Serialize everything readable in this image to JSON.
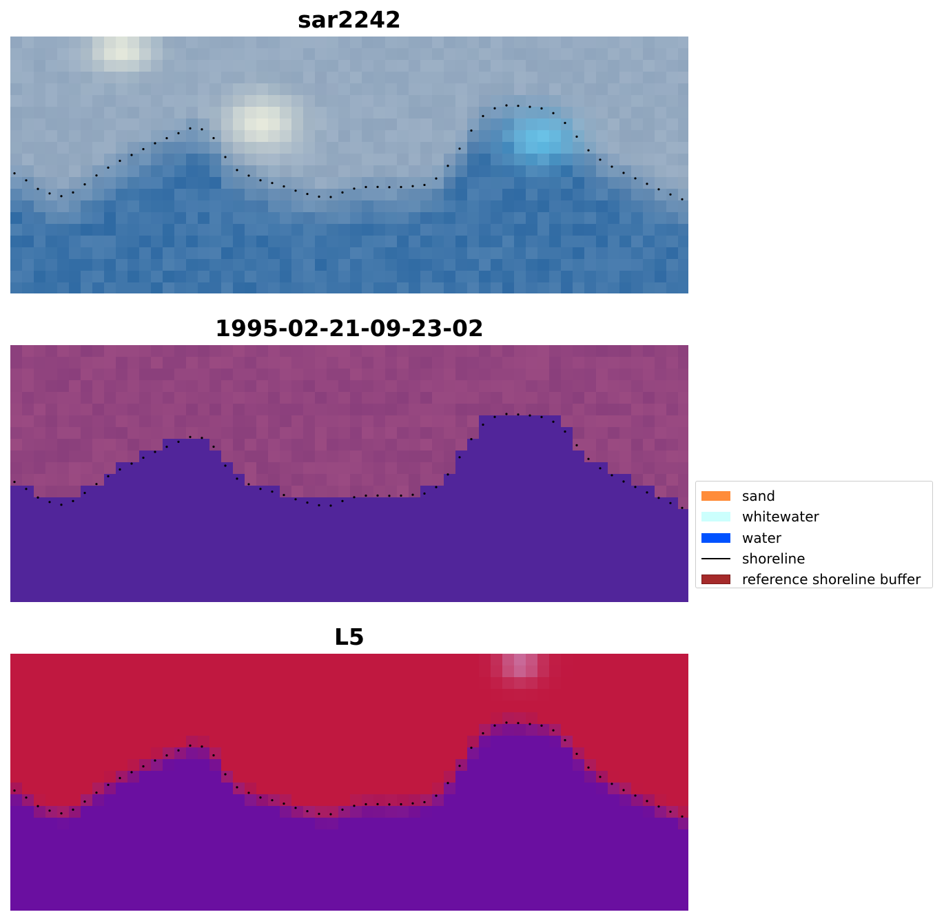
{
  "panels": [
    {
      "title": "sar2242",
      "style": "rgb"
    },
    {
      "title": "1995-02-21-09-23-02",
      "style": "classified"
    },
    {
      "title": "L5",
      "style": "ndwi"
    }
  ],
  "legend": {
    "items": [
      {
        "label": "sand",
        "color": "#ff8c3a",
        "kind": "patch"
      },
      {
        "label": "whitewater",
        "color": "#ccfffd",
        "kind": "patch"
      },
      {
        "label": "water",
        "color": "#0052ff",
        "kind": "patch"
      },
      {
        "label": "shoreline",
        "color": "#000000",
        "kind": "line"
      },
      {
        "label": "reference shoreline buffer",
        "color": "#a52a2a",
        "kind": "patch"
      }
    ]
  },
  "colors": {
    "rgb_land": "#8fa5bd",
    "rgb_water": "#2f6aa3",
    "classified_land": "#8a3f7c",
    "classified_water": "#51259a",
    "ndwi_land": "#c01840",
    "ndwi_water": "#6a0fa0",
    "shoreline": "#000000"
  }
}
